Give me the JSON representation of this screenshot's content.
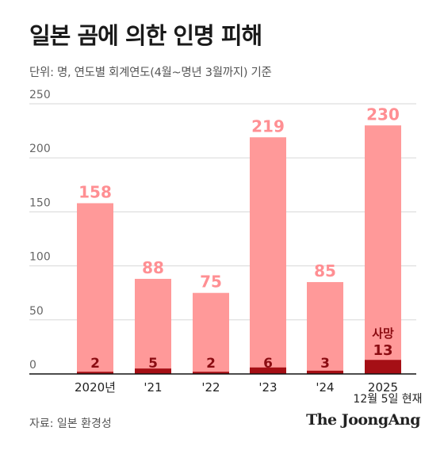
{
  "header": {
    "title": "일본 곰에 의한 인명 피해",
    "subtitle": "단위: 명, 연도별 회계연도(4월~명년 3월까지) 기준"
  },
  "footer": {
    "source": "자료: 일본 환경성",
    "brand": "The JoongAng"
  },
  "colors": {
    "injury": "#ff9999",
    "death": "#a50f15",
    "injury_label": "#ff8f93",
    "death_label": "#8b0c12",
    "axis": "#111111",
    "grid": "#d7d7d7"
  },
  "chart_data": {
    "type": "bar",
    "categories": [
      "2020년",
      "'21",
      "'22",
      "'23",
      "'24",
      "2025"
    ],
    "category_note": "12월 5일 현재",
    "series": [
      {
        "values": [
          158,
          88,
          75,
          219,
          85,
          230
        ]
      },
      {
        "name": "사망",
        "values": [
          2,
          5,
          2,
          6,
          3,
          13
        ]
      }
    ],
    "yticks": [
      0,
      50,
      100,
      150,
      200,
      250
    ],
    "ylim": [
      0,
      250
    ],
    "grid": true,
    "stacking": "overlay"
  }
}
